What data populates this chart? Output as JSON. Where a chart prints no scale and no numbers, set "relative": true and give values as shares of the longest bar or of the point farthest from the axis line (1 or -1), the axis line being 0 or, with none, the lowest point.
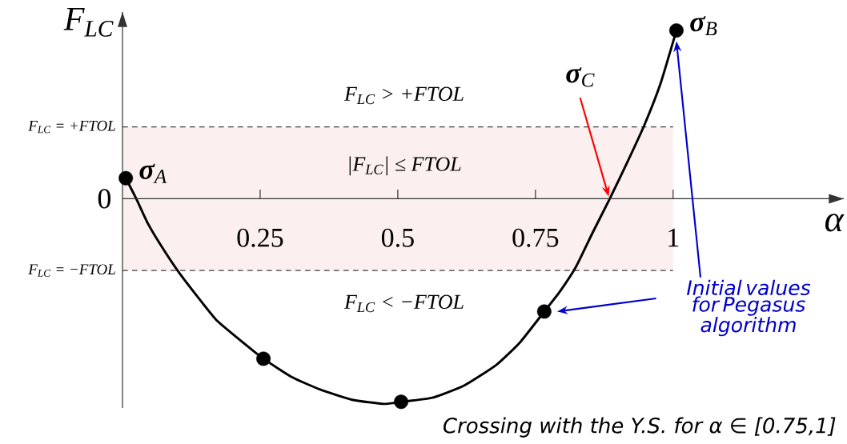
{
  "chart_data": {
    "type": "line",
    "relative": true,
    "xlabel": "α",
    "ylabel": "F$_{LC}$",
    "xlim": [
      0,
      1.31
    ],
    "xticks": [
      0.25,
      0.5,
      0.75,
      1
    ],
    "series": [
      {
        "color": "#000000",
        "x": [
          0.006,
          0.025,
          0.046,
          0.068,
          0.1,
          0.134,
          0.17,
          0.214,
          0.256,
          0.308,
          0.359,
          0.417,
          0.475,
          0.506,
          0.563,
          0.621,
          0.679,
          0.722,
          0.766,
          0.795,
          0.824,
          0.853,
          0.885,
          0.919,
          0.948,
          0.977,
          1.006
        ],
        "values": [
          0.1,
          0.0,
          -0.12,
          -0.22,
          -0.35,
          -0.47,
          -0.59,
          -0.69,
          -0.78,
          -0.87,
          -0.93,
          -0.98,
          -1,
          -0.99,
          -0.97,
          -0.91,
          -0.81,
          -0.7,
          -0.55,
          -0.45,
          -0.33,
          -0.17,
          0,
          0.19,
          0.36,
          0.56,
          0.82
        ]
      },
      {
        "type": "scatter",
        "marker": "circle",
        "color": "#000000",
        "x": [
          0.006,
          0.256,
          0.506,
          0.766,
          1.006
        ],
        "values": [
          0.1,
          -0.78,
          -0.99,
          -0.55,
          0.82
        ]
      }
    ],
    "bands": [
      {
        "axis": "y",
        "from": -0.35,
        "to": 0.35,
        "color": "#fcefef"
      }
    ],
    "ref_lines": [
      {
        "axis": "y",
        "value": 0.35,
        "line_style": "dashed",
        "color": "#404040",
        "label": "F$_{LC}$ = +FTOL"
      },
      {
        "axis": "y",
        "value": -0.35,
        "line_style": "dashed",
        "color": "#404040",
        "label": "F$_{LC}$ = −FTOL"
      }
    ],
    "annotations": [
      "F$_{LC}$ > +FTOL",
      "|F$_{LC}$| ≤ FTOL",
      "F$_{LC}$ < −FTOL",
      {
        "text": "**σ**$_{A}$",
        "x": 0.006,
        "y": 0.1
      },
      {
        "text": "**σ**$_{B}$",
        "x": 1.006,
        "y": 0.82
      },
      "**σ**$_{C}$",
      "Initial values for Pegasus algorithm",
      "Crossing with the Y.S. for α ∈ [0.75,1]",
      "0"
    ]
  }
}
